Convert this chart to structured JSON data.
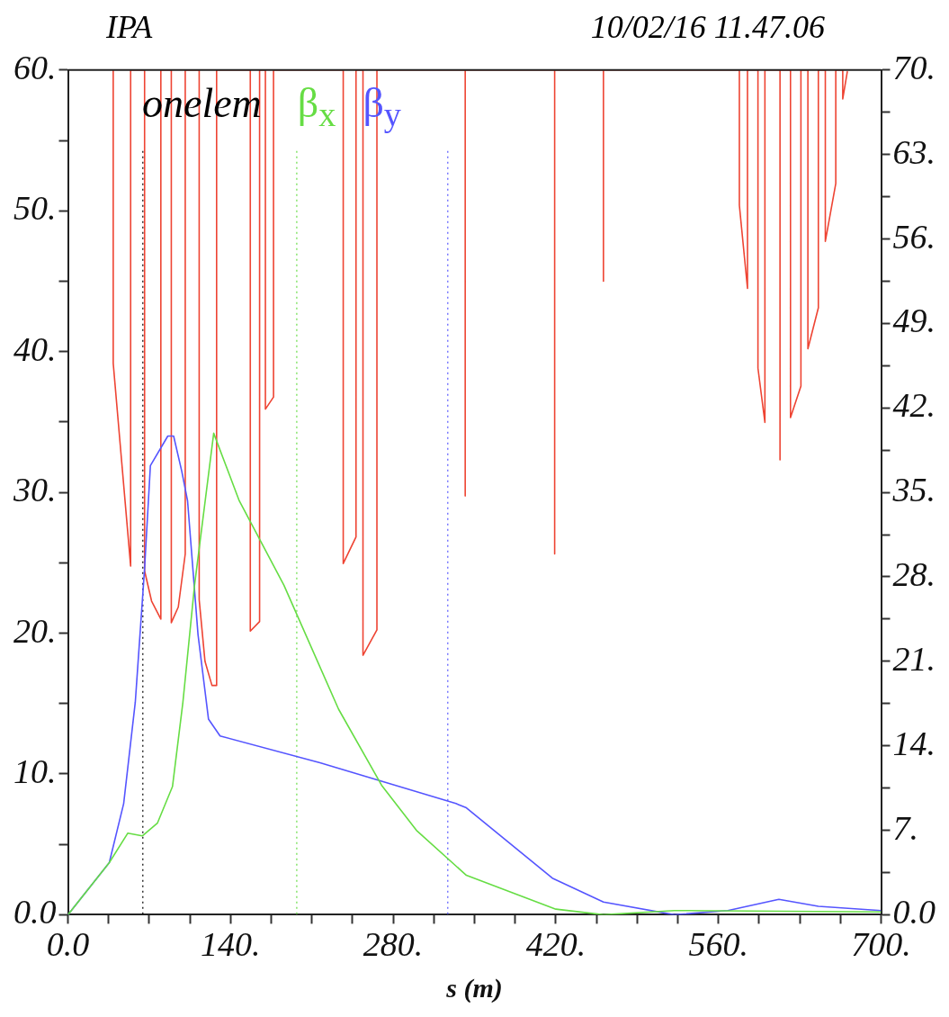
{
  "chart_data": {
    "type": "line",
    "title": "IPA",
    "subtitle": "10/02/16 11.47.06",
    "xlabel": "s (m)",
    "annotations": [
      "onelem"
    ],
    "xlim": [
      0,
      700
    ],
    "xticks": [
      {
        "value": 0,
        "label": "0.0"
      },
      {
        "value": 35,
        "label": null
      },
      {
        "value": 70,
        "label": null
      },
      {
        "value": 105,
        "label": null
      },
      {
        "value": 140,
        "label": "140."
      },
      {
        "value": 175,
        "label": null
      },
      {
        "value": 210,
        "label": null
      },
      {
        "value": 245,
        "label": null
      },
      {
        "value": 280,
        "label": "280."
      },
      {
        "value": 315,
        "label": null
      },
      {
        "value": 350,
        "label": null
      },
      {
        "value": 385,
        "label": null
      },
      {
        "value": 420,
        "label": "420."
      },
      {
        "value": 455,
        "label": null
      },
      {
        "value": 490,
        "label": null
      },
      {
        "value": 525,
        "label": null
      },
      {
        "value": 560,
        "label": "560."
      },
      {
        "value": 595,
        "label": null
      },
      {
        "value": 630,
        "label": null
      },
      {
        "value": 665,
        "label": null
      },
      {
        "value": 700,
        "label": "700."
      }
    ],
    "ylim": [
      0,
      60
    ],
    "yticks": [
      {
        "value": 0,
        "label": "0.0"
      },
      {
        "value": 5,
        "label": null
      },
      {
        "value": 10,
        "label": "10."
      },
      {
        "value": 15,
        "label": null
      },
      {
        "value": 20,
        "label": "20."
      },
      {
        "value": 25,
        "label": null
      },
      {
        "value": 30,
        "label": "30."
      },
      {
        "value": 35,
        "label": null
      },
      {
        "value": 40,
        "label": "40."
      },
      {
        "value": 45,
        "label": null
      },
      {
        "value": 50,
        "label": "50."
      },
      {
        "value": 55,
        "label": null
      },
      {
        "value": 60,
        "label": "60."
      }
    ],
    "y2lim": [
      0,
      70
    ],
    "y2ticks": [
      {
        "value": 0,
        "label": "0.0"
      },
      {
        "value": 3.5,
        "label": null
      },
      {
        "value": 7,
        "label": "7."
      },
      {
        "value": 10.5,
        "label": null
      },
      {
        "value": 14,
        "label": "14."
      },
      {
        "value": 17.5,
        "label": null
      },
      {
        "value": 21,
        "label": "21."
      },
      {
        "value": 24.5,
        "label": null
      },
      {
        "value": 28,
        "label": "28."
      },
      {
        "value": 31.5,
        "label": null
      },
      {
        "value": 35,
        "label": "35."
      },
      {
        "value": 38.5,
        "label": null
      },
      {
        "value": 42,
        "label": "42."
      },
      {
        "value": 45.5,
        "label": null
      },
      {
        "value": 49,
        "label": "49."
      },
      {
        "value": 52.5,
        "label": null
      },
      {
        "value": 56,
        "label": "56."
      },
      {
        "value": 59.5,
        "label": null
      },
      {
        "value": 63,
        "label": "63."
      },
      {
        "value": 66.5,
        "label": null
      },
      {
        "value": 70,
        "label": "70."
      }
    ],
    "grid": false,
    "legend": "top left",
    "marker": "none",
    "line_style": "solid",
    "ref_lines": [
      {
        "axis": "x",
        "value": 64.5,
        "color": "#000000",
        "line_style": "dotted"
      },
      {
        "axis": "x",
        "value": 197,
        "color": "#66dd44",
        "line_style": "dotted"
      },
      {
        "axis": "x",
        "value": 327,
        "color": "#5555ff",
        "line_style": "dotted"
      }
    ],
    "series": [
      {
        "name": "β$_{x}$",
        "color": "#66dd44",
        "x": [
          0,
          35.6,
          51.6,
          64,
          77,
          90,
          99,
          109,
          125.5,
          147.5,
          186,
          233,
          270,
          300,
          343,
          420,
          461,
          522,
          700
        ],
        "values": [
          0,
          3.7,
          5.8,
          5.6,
          6.5,
          9.1,
          15.1,
          23.4,
          34.2,
          29.4,
          23.4,
          14.6,
          9.2,
          6.0,
          2.8,
          0.4,
          0,
          0.3,
          0.2
        ]
      },
      {
        "name": "β$_{y}$",
        "color": "#5555ff",
        "x": [
          0,
          35.6,
          48,
          58,
          66,
          71,
          86,
          91,
          98,
          103,
          112,
          121,
          131,
          217,
          334,
          343,
          417,
          461,
          522,
          568,
          612,
          646,
          700
        ],
        "values": [
          0,
          3.7,
          7.9,
          15.1,
          24.6,
          31.9,
          34.0,
          34.0,
          31.5,
          29.4,
          19.9,
          13.9,
          12.7,
          10.8,
          7.9,
          7.6,
          2.6,
          0.9,
          0,
          0.3,
          1.1,
          0.6,
          0.3
        ]
      },
      {
        "color": "#ee4433",
        "axis": "y2",
        "x": [
          39,
          39,
          54,
          54,
          66,
          66,
          72,
          80,
          80,
          89,
          89,
          95,
          101,
          101,
          113,
          113,
          118,
          124,
          128,
          128,
          157,
          157,
          165,
          165,
          170,
          170,
          177,
          177,
          237,
          237,
          248,
          248,
          254,
          254,
          266,
          266,
          342,
          342,
          342,
          419,
          419,
          419,
          461,
          461,
          461,
          578,
          578,
          585,
          585,
          594,
          594,
          600,
          600,
          613,
          613,
          613,
          622,
          622,
          631,
          631,
          637,
          637,
          646,
          646,
          652,
          652,
          661,
          661,
          667,
          667,
          671
        ],
        "values": [
          70,
          45.7,
          28.9,
          70,
          70,
          28.5,
          26,
          24.5,
          70,
          70,
          24.2,
          25.5,
          29.9,
          70,
          70,
          26.1,
          21,
          19.0,
          19.0,
          70,
          70,
          23.5,
          24.3,
          70,
          70,
          41.9,
          42.9,
          70,
          70,
          29.1,
          31.3,
          70,
          70,
          21.5,
          23.6,
          70,
          70,
          34.7,
          70,
          70,
          29.9,
          70,
          70,
          52.5,
          70,
          70,
          58.8,
          51.9,
          70,
          70,
          45.3,
          40.8,
          70,
          70,
          37.7,
          70,
          70,
          41.2,
          43.8,
          70,
          70,
          46.9,
          50.3,
          70,
          70,
          55.8,
          60.6,
          70,
          70,
          67.6,
          69.9
        ]
      }
    ]
  }
}
